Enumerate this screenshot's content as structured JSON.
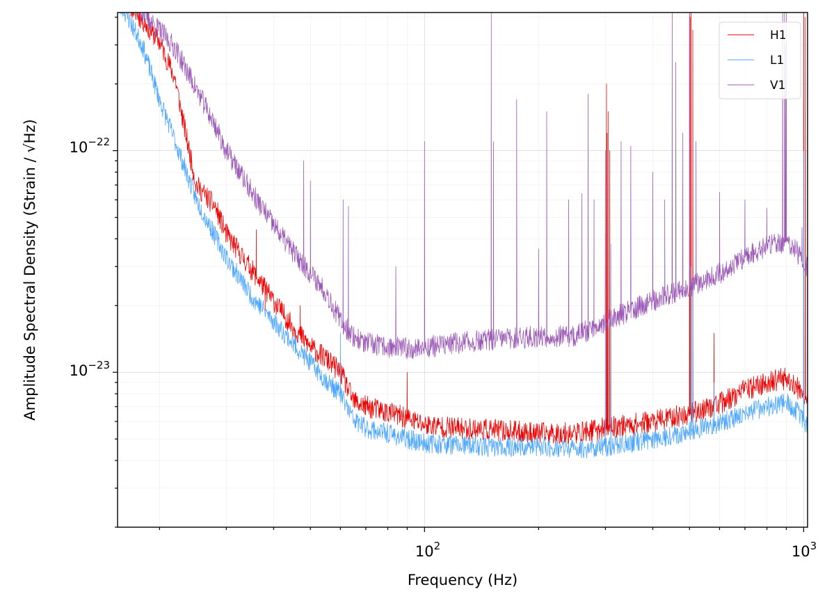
{
  "chart_data": {
    "type": "line",
    "title": "",
    "xlabel": "Frequency (Hz)",
    "ylabel": "Amplitude Spectral Density (Strain / √Hz)",
    "xscale": "log",
    "yscale": "log",
    "xlim": [
      15.5,
      1024
    ],
    "ylim": [
      2e-24,
      4.2e-22
    ],
    "grid": true,
    "legend_position": "top-right",
    "x_major_ticks": [
      {
        "value": 100,
        "base": "10",
        "exp": "2"
      },
      {
        "value": 1000,
        "base": "10",
        "exp": "3"
      }
    ],
    "y_major_ticks": [
      {
        "value": 1e-23,
        "base": "10",
        "exp": "−23"
      },
      {
        "value": 1e-22,
        "base": "10",
        "exp": "−22"
      }
    ],
    "series": [
      {
        "name": "H1",
        "color": "#ee0000",
        "anchors": [
          [
            16,
            5e-22
          ],
          [
            20,
            3.1e-22
          ],
          [
            22,
            2.1e-22
          ],
          [
            23,
            1.4e-22
          ],
          [
            25,
            7e-23
          ],
          [
            28,
            5.6e-23
          ],
          [
            30,
            4.2e-23
          ],
          [
            35,
            2.9e-23
          ],
          [
            40,
            2.1e-23
          ],
          [
            45,
            1.6e-23
          ],
          [
            50,
            1.3e-23
          ],
          [
            55,
            1.15e-23
          ],
          [
            60,
            1e-23
          ],
          [
            65,
            7.4e-24
          ],
          [
            70,
            7e-24
          ],
          [
            80,
            6.6e-24
          ],
          [
            90,
            6.2e-24
          ],
          [
            100,
            5.8e-24
          ],
          [
            120,
            5.6e-24
          ],
          [
            150,
            5.5e-24
          ],
          [
            200,
            5.3e-24
          ],
          [
            250,
            5.3e-24
          ],
          [
            300,
            5.6e-24
          ],
          [
            400,
            6e-24
          ],
          [
            500,
            6.5e-24
          ],
          [
            600,
            7.2e-24
          ],
          [
            700,
            8.3e-24
          ],
          [
            800,
            9e-24
          ],
          [
            900,
            9.4e-24
          ],
          [
            950,
            8.8e-24
          ],
          [
            1000,
            7.6e-24
          ],
          [
            1024,
            7.4e-24
          ]
        ],
        "lines": [
          [
            36,
            4.4e-23
          ],
          [
            38,
            1.9e-23
          ],
          [
            42,
            1.8e-23
          ],
          [
            47,
            2e-23
          ],
          [
            60,
            1.2e-23
          ],
          [
            90,
            1e-23
          ],
          [
            302,
            2e-22
          ],
          [
            303,
            1.2e-22
          ],
          [
            305,
            1.5e-22
          ],
          [
            308,
            1e-22
          ],
          [
            500,
            5e-22
          ],
          [
            502,
            4e-22
          ],
          [
            505,
            5e-22
          ],
          [
            510,
            3.5e-22
          ],
          [
            580,
            1.5e-23
          ],
          [
            1000,
            5e-22
          ],
          [
            1010,
            4e-22
          ]
        ],
        "noise": 0.05,
        "seed": 11
      },
      {
        "name": "L1",
        "color": "#4da6ff",
        "anchors": [
          [
            16,
            4.4e-22
          ],
          [
            18,
            3e-22
          ],
          [
            20,
            1.7e-22
          ],
          [
            22,
            1.1e-22
          ],
          [
            25,
            6e-23
          ],
          [
            30,
            3.3e-23
          ],
          [
            35,
            2.2e-23
          ],
          [
            40,
            1.7e-23
          ],
          [
            45,
            1.35e-23
          ],
          [
            50,
            1.1e-23
          ],
          [
            55,
            9.2e-24
          ],
          [
            60,
            8e-24
          ],
          [
            65,
            6.1e-24
          ],
          [
            70,
            5.6e-24
          ],
          [
            80,
            5.3e-24
          ],
          [
            90,
            5e-24
          ],
          [
            100,
            4.8e-24
          ],
          [
            120,
            4.7e-24
          ],
          [
            150,
            4.6e-24
          ],
          [
            200,
            4.6e-24
          ],
          [
            250,
            4.5e-24
          ],
          [
            300,
            4.6e-24
          ],
          [
            400,
            5e-24
          ],
          [
            500,
            5.4e-24
          ],
          [
            600,
            5.9e-24
          ],
          [
            700,
            6.5e-24
          ],
          [
            800,
            7e-24
          ],
          [
            900,
            7.3e-24
          ],
          [
            950,
            6.8e-24
          ],
          [
            1000,
            6e-24
          ],
          [
            1024,
            5.8e-24
          ]
        ],
        "lines": [
          [
            60,
            1.5e-23
          ],
          [
            300,
            4.2e-23
          ],
          [
            310,
            3.8e-23
          ],
          [
            505,
            3e-23
          ],
          [
            510,
            2.6e-23
          ],
          [
            580,
            9e-24
          ],
          [
            1000,
            1e-22
          ]
        ],
        "noise": 0.045,
        "seed": 23
      },
      {
        "name": "V1",
        "color": "#9b59b6",
        "anchors": [
          [
            16,
            5.2e-22
          ],
          [
            20,
            3.5e-22
          ],
          [
            22,
            2.9e-22
          ],
          [
            25,
            1.9e-22
          ],
          [
            28,
            1.3e-22
          ],
          [
            30,
            1e-22
          ],
          [
            35,
            6.5e-23
          ],
          [
            40,
            4.6e-23
          ],
          [
            45,
            3.5e-23
          ],
          [
            50,
            2.8e-23
          ],
          [
            55,
            2.3e-23
          ],
          [
            60,
            1.7e-23
          ],
          [
            65,
            1.45e-23
          ],
          [
            70,
            1.35e-23
          ],
          [
            80,
            1.3e-23
          ],
          [
            90,
            1.28e-23
          ],
          [
            100,
            1.3e-23
          ],
          [
            120,
            1.35e-23
          ],
          [
            150,
            1.4e-23
          ],
          [
            200,
            1.45e-23
          ],
          [
            250,
            1.45e-23
          ],
          [
            300,
            1.7e-23
          ],
          [
            400,
            2.1e-23
          ],
          [
            500,
            2.45e-23
          ],
          [
            600,
            2.8e-23
          ],
          [
            700,
            3.3e-23
          ],
          [
            800,
            3.7e-23
          ],
          [
            900,
            3.9e-23
          ],
          [
            950,
            3.6e-23
          ],
          [
            1000,
            3.1e-23
          ],
          [
            1024,
            3e-23
          ]
        ],
        "lines": [
          [
            48,
            9e-23
          ],
          [
            50,
            7.3e-23
          ],
          [
            61,
            6e-23
          ],
          [
            63,
            5.6e-23
          ],
          [
            84,
            3e-23
          ],
          [
            100,
            1.1e-22
          ],
          [
            150,
            4.2e-22
          ],
          [
            152,
            1.1e-22
          ],
          [
            175,
            1.7e-22
          ],
          [
            200,
            3.6e-23
          ],
          [
            210,
            1.5e-22
          ],
          [
            240,
            6e-23
          ],
          [
            260,
            6.4e-23
          ],
          [
            270,
            1.8e-22
          ],
          [
            280,
            6e-23
          ],
          [
            300,
            1e-22
          ],
          [
            330,
            1.1e-22
          ],
          [
            350,
            1.05e-22
          ],
          [
            400,
            8e-23
          ],
          [
            430,
            6e-23
          ],
          [
            450,
            4.5e-22
          ],
          [
            460,
            2.5e-22
          ],
          [
            480,
            1.2e-22
          ],
          [
            500,
            4.5e-22
          ],
          [
            520,
            1.1e-22
          ],
          [
            600,
            6.5e-23
          ],
          [
            700,
            6e-23
          ],
          [
            800,
            5.5e-23
          ],
          [
            880,
            4.2e-22
          ],
          [
            890,
            4.2e-22
          ],
          [
            895,
            3e-22
          ],
          [
            900,
            4.2e-22
          ],
          [
            990,
            4.5e-23
          ]
        ],
        "noise": 0.05,
        "seed": 37
      }
    ]
  }
}
